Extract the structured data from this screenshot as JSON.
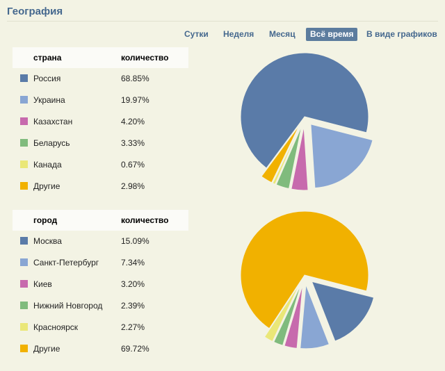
{
  "page": {
    "title": "География"
  },
  "tabs": [
    {
      "label": "Сутки",
      "active": false
    },
    {
      "label": "Неделя",
      "active": false
    },
    {
      "label": "Месяц",
      "active": false
    },
    {
      "label": "Всё время",
      "active": true
    },
    {
      "label": "В виде графиков",
      "active": false
    }
  ],
  "countries": {
    "headers": [
      "страна",
      "количество"
    ],
    "rows": [
      {
        "name": "Россия",
        "value": "68.85%"
      },
      {
        "name": "Украина",
        "value": "19.97%"
      },
      {
        "name": "Казахстан",
        "value": "4.20%"
      },
      {
        "name": "Беларусь",
        "value": "3.33%"
      },
      {
        "name": "Канада",
        "value": "0.67%"
      },
      {
        "name": "Другие",
        "value": "2.98%"
      }
    ]
  },
  "cities": {
    "headers": [
      "город",
      "количество"
    ],
    "rows": [
      {
        "name": "Москва",
        "value": "15.09%"
      },
      {
        "name": "Санкт-Петербург",
        "value": "7.34%"
      },
      {
        "name": "Киев",
        "value": "3.20%"
      },
      {
        "name": "Нижний Новгород",
        "value": "2.39%"
      },
      {
        "name": "Красноярск",
        "value": "2.27%"
      },
      {
        "name": "Другие",
        "value": "69.72%"
      }
    ]
  },
  "colors": [
    "#5a7ba8",
    "#89a6d3",
    "#c76aad",
    "#80bb7d",
    "#eae778",
    "#f1b100"
  ],
  "chart_data": [
    {
      "type": "pie",
      "categories": [
        "Россия",
        "Украина",
        "Казахстан",
        "Беларусь",
        "Канада",
        "Другие"
      ],
      "values": [
        68.85,
        19.97,
        4.2,
        3.33,
        0.67,
        2.98
      ]
    },
    {
      "type": "pie",
      "categories": [
        "Москва",
        "Санкт-Петербург",
        "Киев",
        "Нижний Новгород",
        "Красноярск",
        "Другие"
      ],
      "values": [
        15.09,
        7.34,
        3.2,
        2.39,
        2.27,
        69.72
      ]
    }
  ]
}
